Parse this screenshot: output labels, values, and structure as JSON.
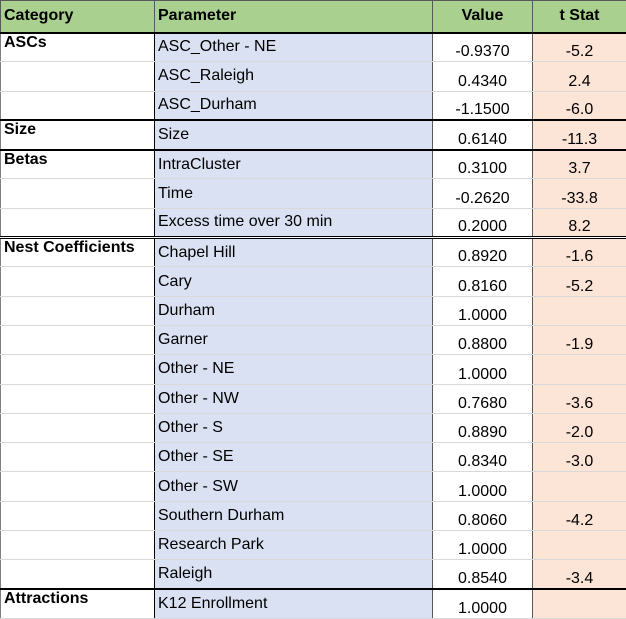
{
  "headers": {
    "category": "Category",
    "parameter": "Parameter",
    "value": "Value",
    "tstat": "t Stat"
  },
  "groups": [
    {
      "category": "ASCs",
      "rows": [
        {
          "parameter": "ASC_Other - NE",
          "value": "-0.9370",
          "tstat": "-5.2"
        },
        {
          "parameter": "ASC_Raleigh",
          "value": "0.4340",
          "tstat": "2.4"
        },
        {
          "parameter": "ASC_Durham",
          "value": "-1.1500",
          "tstat": "-6.0"
        }
      ]
    },
    {
      "category": "Size",
      "rows": [
        {
          "parameter": "Size",
          "value": "0.6140",
          "tstat": "-11.3"
        }
      ]
    },
    {
      "category": "Betas",
      "rows": [
        {
          "parameter": "IntraCluster",
          "value": "0.3100",
          "tstat": "3.7"
        },
        {
          "parameter": "Time",
          "value": "-0.2620",
          "tstat": "-33.8"
        },
        {
          "parameter": "Excess time over 30 min",
          "value": "0.2000",
          "tstat": "8.2"
        }
      ]
    },
    {
      "category": "Nest Coefficients",
      "rows": [
        {
          "parameter": "Chapel Hill",
          "value": "0.8920",
          "tstat": "-1.6"
        },
        {
          "parameter": "Cary",
          "value": "0.8160",
          "tstat": "-5.2"
        },
        {
          "parameter": "Durham",
          "value": "1.0000",
          "tstat": ""
        },
        {
          "parameter": "Garner",
          "value": "0.8800",
          "tstat": "-1.9"
        },
        {
          "parameter": "Other - NE",
          "value": "1.0000",
          "tstat": ""
        },
        {
          "parameter": "Other - NW",
          "value": "0.7680",
          "tstat": "-3.6"
        },
        {
          "parameter": "Other - S",
          "value": "0.8890",
          "tstat": "-2.0"
        },
        {
          "parameter": "Other - SE",
          "value": "0.8340",
          "tstat": "-3.0"
        },
        {
          "parameter": "Other - SW",
          "value": "1.0000",
          "tstat": ""
        },
        {
          "parameter": "Southern Durham",
          "value": "0.8060",
          "tstat": "-4.2"
        },
        {
          "parameter": "Research Park",
          "value": "1.0000",
          "tstat": ""
        },
        {
          "parameter": "Raleigh",
          "value": "0.8540",
          "tstat": "-3.4"
        }
      ]
    },
    {
      "category": "Attractions",
      "rows": [
        {
          "parameter": "K12 Enrollment",
          "value": "1.0000",
          "tstat": ""
        }
      ]
    }
  ],
  "colors": {
    "header_bg": "#a9d08e",
    "parameter_bg": "#d9e1f2",
    "tstat_bg": "#fce4d6"
  }
}
